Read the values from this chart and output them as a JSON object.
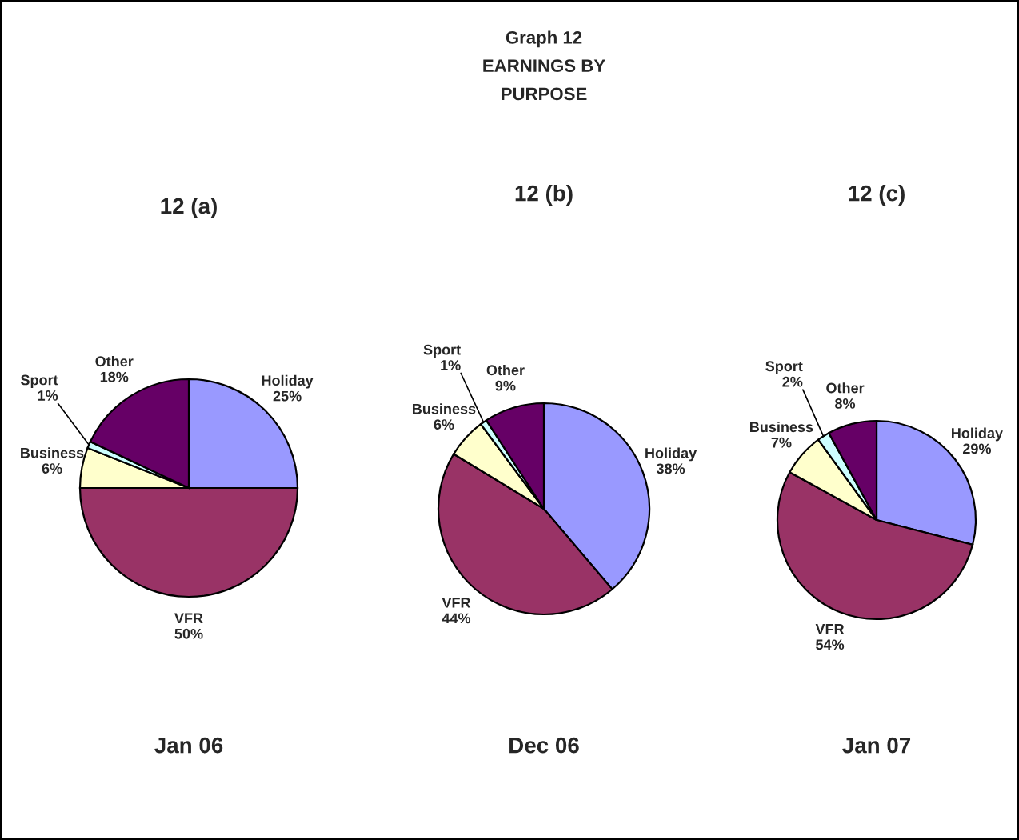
{
  "chart_data": [
    {
      "type": "pie",
      "title": "12 (a)",
      "xlabel": "Jan 06",
      "categories": [
        "Holiday",
        "VFR",
        "Business",
        "Sport",
        "Other"
      ],
      "values": [
        25,
        50,
        6,
        1,
        18
      ],
      "value_labels": [
        "25%",
        "50%",
        "6%",
        "1%",
        "18%"
      ],
      "colors": [
        "#9999ff",
        "#993366",
        "#ffffcc",
        "#ccffff",
        "#660066"
      ]
    },
    {
      "type": "pie",
      "title": "12 (b)",
      "xlabel": "Dec 06",
      "annotations": [
        "Graph 12\nEARNINGS BY\nPURPOSE"
      ],
      "categories": [
        "Holiday",
        "VFR",
        "Business",
        "Sport",
        "Other"
      ],
      "values": [
        38,
        44,
        6,
        1,
        9
      ],
      "value_labels": [
        "38%",
        "44%",
        "6%",
        "1%",
        "9%"
      ],
      "colors": [
        "#9999ff",
        "#993366",
        "#ffffcc",
        "#ccffff",
        "#660066"
      ]
    },
    {
      "type": "pie",
      "title": "12 (c)",
      "xlabel": "Jan 07",
      "categories": [
        "Holiday",
        "VFR",
        "Business",
        "Sport",
        "Other"
      ],
      "values": [
        29,
        54,
        7,
        2,
        8
      ],
      "value_labels": [
        "29%",
        "54%",
        "7%",
        "2%",
        "8%"
      ],
      "colors": [
        "#9999ff",
        "#993366",
        "#ffffcc",
        "#ccffff",
        "#660066"
      ]
    }
  ]
}
